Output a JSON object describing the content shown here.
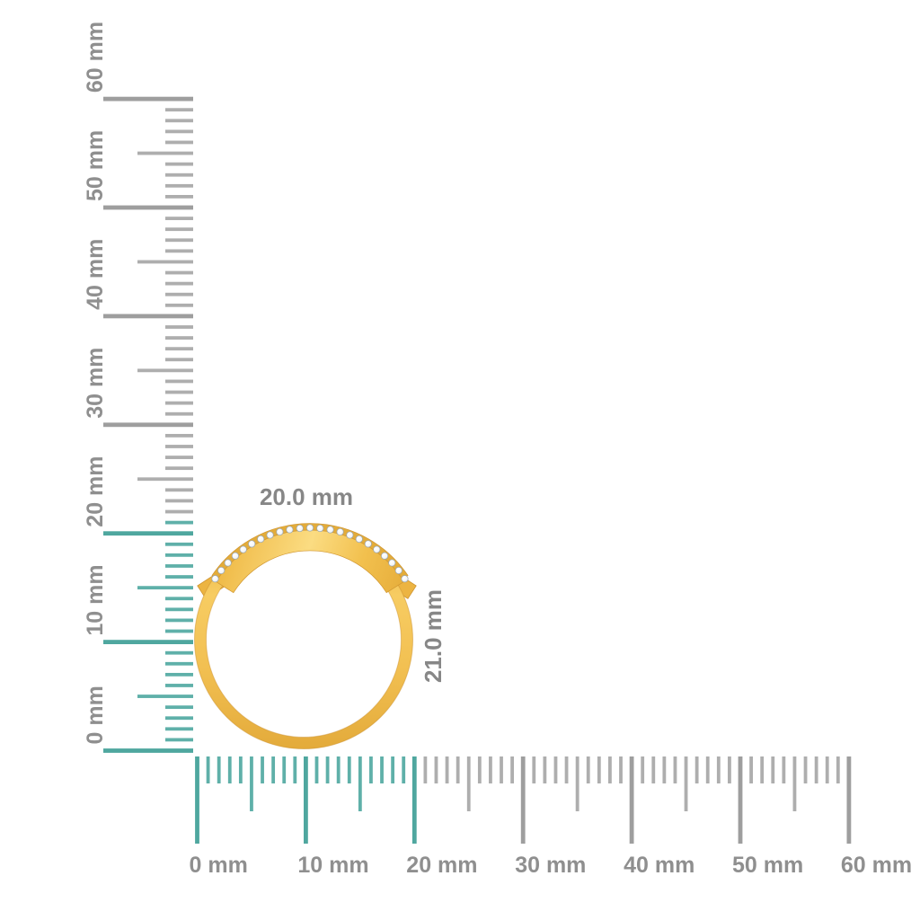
{
  "measurement": {
    "unit": "mm",
    "object_width_label": "20.0 mm",
    "object_height_label": "21.0 mm",
    "object_width_mm": 20.0,
    "object_height_mm": 21.0,
    "dimension_label_color": "#878787"
  },
  "rulers": {
    "colors": {
      "highlight": "#5FB0A9",
      "highlight_major": "#4FA79F",
      "default": "#AEAEAE",
      "default_major": "#9E9E9E",
      "label": "#8F8F8F"
    },
    "vertical": {
      "min_mm": 0,
      "max_mm": 60,
      "minor_step_mm": 1,
      "half_step_mm": 5,
      "major_step_mm": 10,
      "highlight_from_mm": 0,
      "highlight_to_mm": 21,
      "major_labels": [
        {
          "mm": 0,
          "text": "0 mm"
        },
        {
          "mm": 10,
          "text": "10 mm"
        },
        {
          "mm": 20,
          "text": "20 mm"
        },
        {
          "mm": 30,
          "text": "30 mm"
        },
        {
          "mm": 40,
          "text": "40 mm"
        },
        {
          "mm": 50,
          "text": "50 mm"
        },
        {
          "mm": 60,
          "text": "60 mm"
        }
      ]
    },
    "horizontal": {
      "min_mm": 0,
      "max_mm": 60,
      "minor_step_mm": 1,
      "half_step_mm": 5,
      "major_step_mm": 10,
      "highlight_from_mm": 0,
      "highlight_to_mm": 20,
      "major_labels": [
        {
          "mm": 0,
          "text": "0 mm"
        },
        {
          "mm": 10,
          "text": "10 mm"
        },
        {
          "mm": 20,
          "text": "20 mm"
        },
        {
          "mm": 30,
          "text": "30 mm"
        },
        {
          "mm": 40,
          "text": "40 mm"
        },
        {
          "mm": 50,
          "text": "50 mm"
        },
        {
          "mm": 60,
          "text": "60 mm"
        }
      ]
    }
  },
  "object": {
    "kind": "gold bypass ring with diamond accent row",
    "diamond_count": 23,
    "colors": {
      "gold_light": "#FBDC82",
      "gold": "#F2C052",
      "gold_dark": "#E3AA3A",
      "gold_edge": "#CF9430",
      "diamond": "#F2F5F7",
      "diamond_edge": "#9AA6B1"
    }
  }
}
